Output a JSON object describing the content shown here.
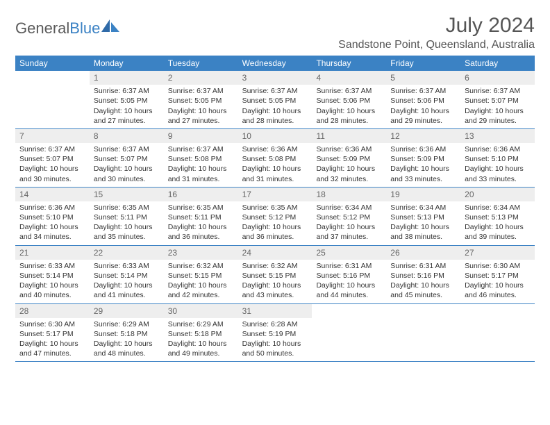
{
  "logo": {
    "text1": "General",
    "text2": "Blue"
  },
  "title": "July 2024",
  "location": "Sandstone Point, Queensland, Australia",
  "day_headers": [
    "Sunday",
    "Monday",
    "Tuesday",
    "Wednesday",
    "Thursday",
    "Friday",
    "Saturday"
  ],
  "colors": {
    "header_bg": "#3b82c4",
    "header_text": "#ffffff",
    "daynum_bg": "#eeeeee",
    "daynum_text": "#666666",
    "body_text": "#333333",
    "title_text": "#555555",
    "row_border": "#3b82c4"
  },
  "fonts": {
    "title_size_pt": 22,
    "location_size_pt": 12,
    "dayheader_size_pt": 9,
    "body_size_pt": 8
  },
  "weeks": [
    [
      {
        "n": "",
        "sr": "",
        "ss": "",
        "dl": ""
      },
      {
        "n": "1",
        "sr": "Sunrise: 6:37 AM",
        "ss": "Sunset: 5:05 PM",
        "dl": "Daylight: 10 hours and 27 minutes."
      },
      {
        "n": "2",
        "sr": "Sunrise: 6:37 AM",
        "ss": "Sunset: 5:05 PM",
        "dl": "Daylight: 10 hours and 27 minutes."
      },
      {
        "n": "3",
        "sr": "Sunrise: 6:37 AM",
        "ss": "Sunset: 5:05 PM",
        "dl": "Daylight: 10 hours and 28 minutes."
      },
      {
        "n": "4",
        "sr": "Sunrise: 6:37 AM",
        "ss": "Sunset: 5:06 PM",
        "dl": "Daylight: 10 hours and 28 minutes."
      },
      {
        "n": "5",
        "sr": "Sunrise: 6:37 AM",
        "ss": "Sunset: 5:06 PM",
        "dl": "Daylight: 10 hours and 29 minutes."
      },
      {
        "n": "6",
        "sr": "Sunrise: 6:37 AM",
        "ss": "Sunset: 5:07 PM",
        "dl": "Daylight: 10 hours and 29 minutes."
      }
    ],
    [
      {
        "n": "7",
        "sr": "Sunrise: 6:37 AM",
        "ss": "Sunset: 5:07 PM",
        "dl": "Daylight: 10 hours and 30 minutes."
      },
      {
        "n": "8",
        "sr": "Sunrise: 6:37 AM",
        "ss": "Sunset: 5:07 PM",
        "dl": "Daylight: 10 hours and 30 minutes."
      },
      {
        "n": "9",
        "sr": "Sunrise: 6:37 AM",
        "ss": "Sunset: 5:08 PM",
        "dl": "Daylight: 10 hours and 31 minutes."
      },
      {
        "n": "10",
        "sr": "Sunrise: 6:36 AM",
        "ss": "Sunset: 5:08 PM",
        "dl": "Daylight: 10 hours and 31 minutes."
      },
      {
        "n": "11",
        "sr": "Sunrise: 6:36 AM",
        "ss": "Sunset: 5:09 PM",
        "dl": "Daylight: 10 hours and 32 minutes."
      },
      {
        "n": "12",
        "sr": "Sunrise: 6:36 AM",
        "ss": "Sunset: 5:09 PM",
        "dl": "Daylight: 10 hours and 33 minutes."
      },
      {
        "n": "13",
        "sr": "Sunrise: 6:36 AM",
        "ss": "Sunset: 5:10 PM",
        "dl": "Daylight: 10 hours and 33 minutes."
      }
    ],
    [
      {
        "n": "14",
        "sr": "Sunrise: 6:36 AM",
        "ss": "Sunset: 5:10 PM",
        "dl": "Daylight: 10 hours and 34 minutes."
      },
      {
        "n": "15",
        "sr": "Sunrise: 6:35 AM",
        "ss": "Sunset: 5:11 PM",
        "dl": "Daylight: 10 hours and 35 minutes."
      },
      {
        "n": "16",
        "sr": "Sunrise: 6:35 AM",
        "ss": "Sunset: 5:11 PM",
        "dl": "Daylight: 10 hours and 36 minutes."
      },
      {
        "n": "17",
        "sr": "Sunrise: 6:35 AM",
        "ss": "Sunset: 5:12 PM",
        "dl": "Daylight: 10 hours and 36 minutes."
      },
      {
        "n": "18",
        "sr": "Sunrise: 6:34 AM",
        "ss": "Sunset: 5:12 PM",
        "dl": "Daylight: 10 hours and 37 minutes."
      },
      {
        "n": "19",
        "sr": "Sunrise: 6:34 AM",
        "ss": "Sunset: 5:13 PM",
        "dl": "Daylight: 10 hours and 38 minutes."
      },
      {
        "n": "20",
        "sr": "Sunrise: 6:34 AM",
        "ss": "Sunset: 5:13 PM",
        "dl": "Daylight: 10 hours and 39 minutes."
      }
    ],
    [
      {
        "n": "21",
        "sr": "Sunrise: 6:33 AM",
        "ss": "Sunset: 5:14 PM",
        "dl": "Daylight: 10 hours and 40 minutes."
      },
      {
        "n": "22",
        "sr": "Sunrise: 6:33 AM",
        "ss": "Sunset: 5:14 PM",
        "dl": "Daylight: 10 hours and 41 minutes."
      },
      {
        "n": "23",
        "sr": "Sunrise: 6:32 AM",
        "ss": "Sunset: 5:15 PM",
        "dl": "Daylight: 10 hours and 42 minutes."
      },
      {
        "n": "24",
        "sr": "Sunrise: 6:32 AM",
        "ss": "Sunset: 5:15 PM",
        "dl": "Daylight: 10 hours and 43 minutes."
      },
      {
        "n": "25",
        "sr": "Sunrise: 6:31 AM",
        "ss": "Sunset: 5:16 PM",
        "dl": "Daylight: 10 hours and 44 minutes."
      },
      {
        "n": "26",
        "sr": "Sunrise: 6:31 AM",
        "ss": "Sunset: 5:16 PM",
        "dl": "Daylight: 10 hours and 45 minutes."
      },
      {
        "n": "27",
        "sr": "Sunrise: 6:30 AM",
        "ss": "Sunset: 5:17 PM",
        "dl": "Daylight: 10 hours and 46 minutes."
      }
    ],
    [
      {
        "n": "28",
        "sr": "Sunrise: 6:30 AM",
        "ss": "Sunset: 5:17 PM",
        "dl": "Daylight: 10 hours and 47 minutes."
      },
      {
        "n": "29",
        "sr": "Sunrise: 6:29 AM",
        "ss": "Sunset: 5:18 PM",
        "dl": "Daylight: 10 hours and 48 minutes."
      },
      {
        "n": "30",
        "sr": "Sunrise: 6:29 AM",
        "ss": "Sunset: 5:18 PM",
        "dl": "Daylight: 10 hours and 49 minutes."
      },
      {
        "n": "31",
        "sr": "Sunrise: 6:28 AM",
        "ss": "Sunset: 5:19 PM",
        "dl": "Daylight: 10 hours and 50 minutes."
      },
      {
        "n": "",
        "sr": "",
        "ss": "",
        "dl": ""
      },
      {
        "n": "",
        "sr": "",
        "ss": "",
        "dl": ""
      },
      {
        "n": "",
        "sr": "",
        "ss": "",
        "dl": ""
      }
    ]
  ]
}
